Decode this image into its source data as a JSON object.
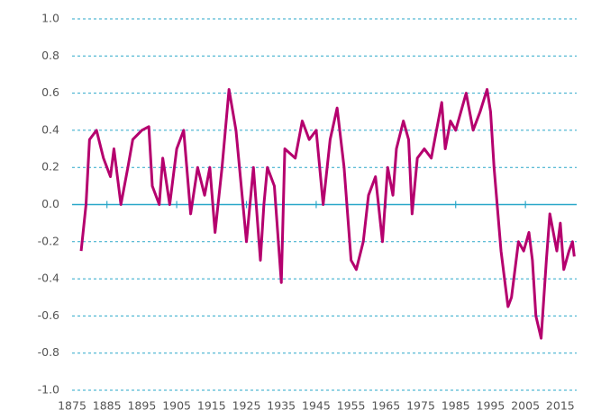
{
  "chart_data": {
    "type": "line",
    "x": [
      1877.6,
      1879,
      1880,
      1882,
      1884,
      1886,
      1887,
      1889,
      1891,
      1892.4,
      1895,
      1897,
      1898,
      1900,
      1901,
      1903,
      1905,
      1907,
      1909,
      1911,
      1913,
      1914.5,
      1916,
      1918,
      1920,
      1922,
      1924,
      1925,
      1927,
      1929,
      1930,
      1931,
      1933,
      1935,
      1936,
      1939,
      1941,
      1943,
      1945,
      1947,
      1949,
      1951,
      1953,
      1955,
      1956.5,
      1958.5,
      1960,
      1962,
      1964,
      1965.5,
      1967,
      1968,
      1970,
      1971.5,
      1972.5,
      1974,
      1976,
      1978,
      1981,
      1982,
      1983.5,
      1985,
      1988,
      1990,
      1992,
      1994,
      1995,
      1996,
      1998,
      2000,
      2001,
      2003,
      2004.5,
      2006,
      2007,
      2008,
      2009.5,
      2011,
      2012,
      2014,
      2015,
      2016,
      2017.5,
      2018.5,
      2019
    ],
    "series": [
      {
        "color": "#b5006e",
        "values": [
          -0.25,
          0,
          0.35,
          0.4,
          0.25,
          0.15,
          0.3,
          0.0,
          0.2,
          0.35,
          0.4,
          0.42,
          0.1,
          0.0,
          0.25,
          0.0,
          0.3,
          0.4,
          -0.05,
          0.2,
          0.05,
          0.2,
          -0.15,
          0.2,
          0.62,
          0.4,
          0.0,
          -0.2,
          0.2,
          -0.3,
          0.0,
          0.2,
          0.1,
          -0.42,
          0.3,
          0.25,
          0.45,
          0.35,
          0.4,
          0.0,
          0.35,
          0.52,
          0.2,
          -0.3,
          -0.35,
          -0.2,
          0.05,
          0.15,
          -0.2,
          0.2,
          0.05,
          0.3,
          0.45,
          0.35,
          -0.05,
          0.25,
          0.3,
          0.25,
          0.55,
          0.3,
          0.45,
          0.4,
          0.6,
          0.4,
          0.5,
          0.62,
          0.5,
          0.2,
          -0.25,
          -0.55,
          -0.5,
          -0.2,
          -0.25,
          -0.15,
          -0.3,
          -0.6,
          -0.72,
          -0.3,
          -0.05,
          -0.25,
          -0.1,
          -0.35,
          -0.25,
          -0.2,
          -0.28
        ]
      }
    ],
    "xlim": [
      1875,
      2021.5
    ],
    "xticks": [
      1875,
      1885,
      1895,
      1905,
      1915,
      1925,
      1935,
      1945,
      1955,
      1965,
      1975,
      1985,
      1995,
      2005,
      2015
    ],
    "ylim": [
      -1.0,
      1.0
    ],
    "yticks": [
      {
        "value": 1.0,
        "label": "1.0"
      },
      {
        "value": 0.8,
        "label": "0.8"
      },
      {
        "value": 0.6,
        "label": "0.6"
      },
      {
        "value": 0.4,
        "label": "0.4"
      },
      {
        "value": 0.2,
        "label": "0.2"
      },
      {
        "value": 0.0,
        "label": "0.0"
      },
      {
        "value": -0.2,
        "label": "-0.2"
      },
      {
        "value": -0.4,
        "label": "-0.4"
      },
      {
        "value": -0.6,
        "label": "-0.6"
      },
      {
        "value": -0.8,
        "label": "-0.8"
      },
      {
        "value": -1.0,
        "label": "-1.0"
      }
    ],
    "grid": true
  }
}
